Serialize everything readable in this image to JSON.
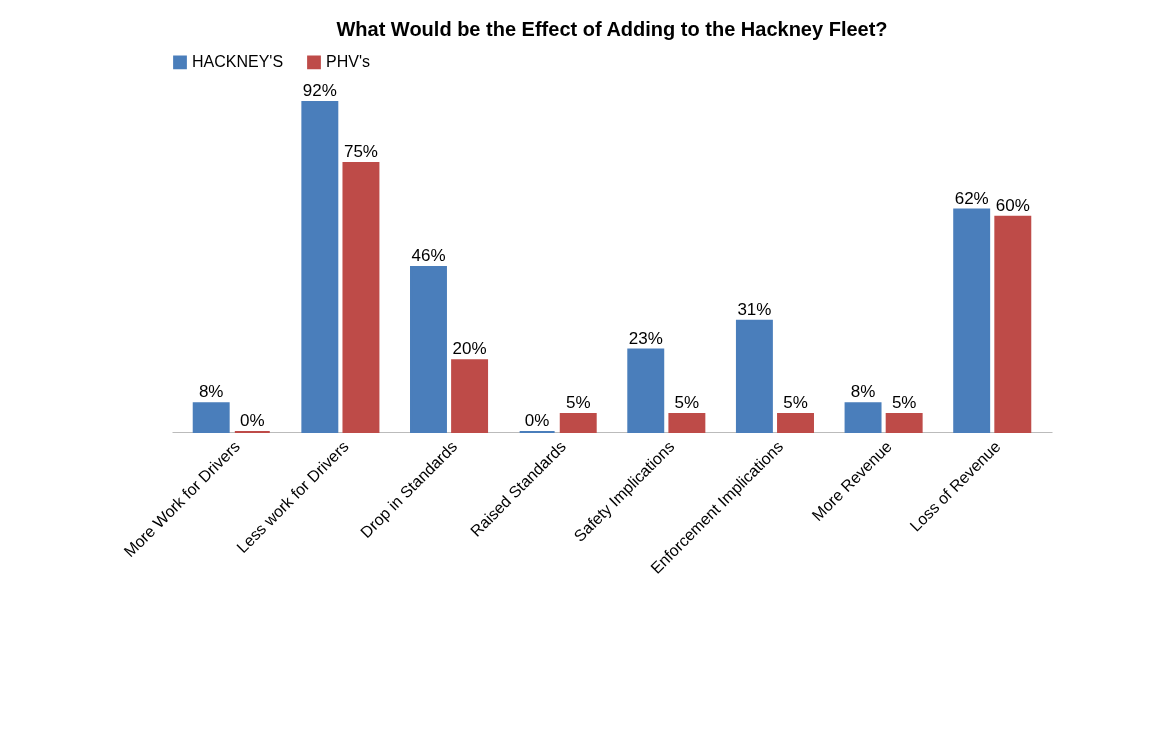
{
  "chart_data": {
    "type": "bar",
    "title": "What Would be the Effect of Adding to the Hackney Fleet?",
    "categories": [
      "More Work for Drivers",
      "Less work for Drivers",
      "Drop in Standards",
      "Raised Standards",
      "Safety Implications",
      "Enforcement Implications",
      "More Revenue",
      "Loss of Revenue"
    ],
    "series": [
      {
        "name": "HACKNEY'S",
        "color": "#4a7ebb",
        "values": [
          8,
          92,
          46,
          0,
          23,
          31,
          8,
          62
        ],
        "value_labels": [
          "8%",
          "92%",
          "46%",
          "0%",
          "23%",
          "31%",
          "8%",
          "62%"
        ]
      },
      {
        "name": "PHV's",
        "color": "#be4b48",
        "values": [
          0,
          75,
          20,
          5,
          5,
          5,
          5,
          60
        ],
        "value_labels": [
          "0%",
          "75%",
          "20%",
          "5%",
          "5%",
          "5%",
          "5%",
          "60%"
        ]
      }
    ],
    "legend": "top",
    "grid": false
  }
}
